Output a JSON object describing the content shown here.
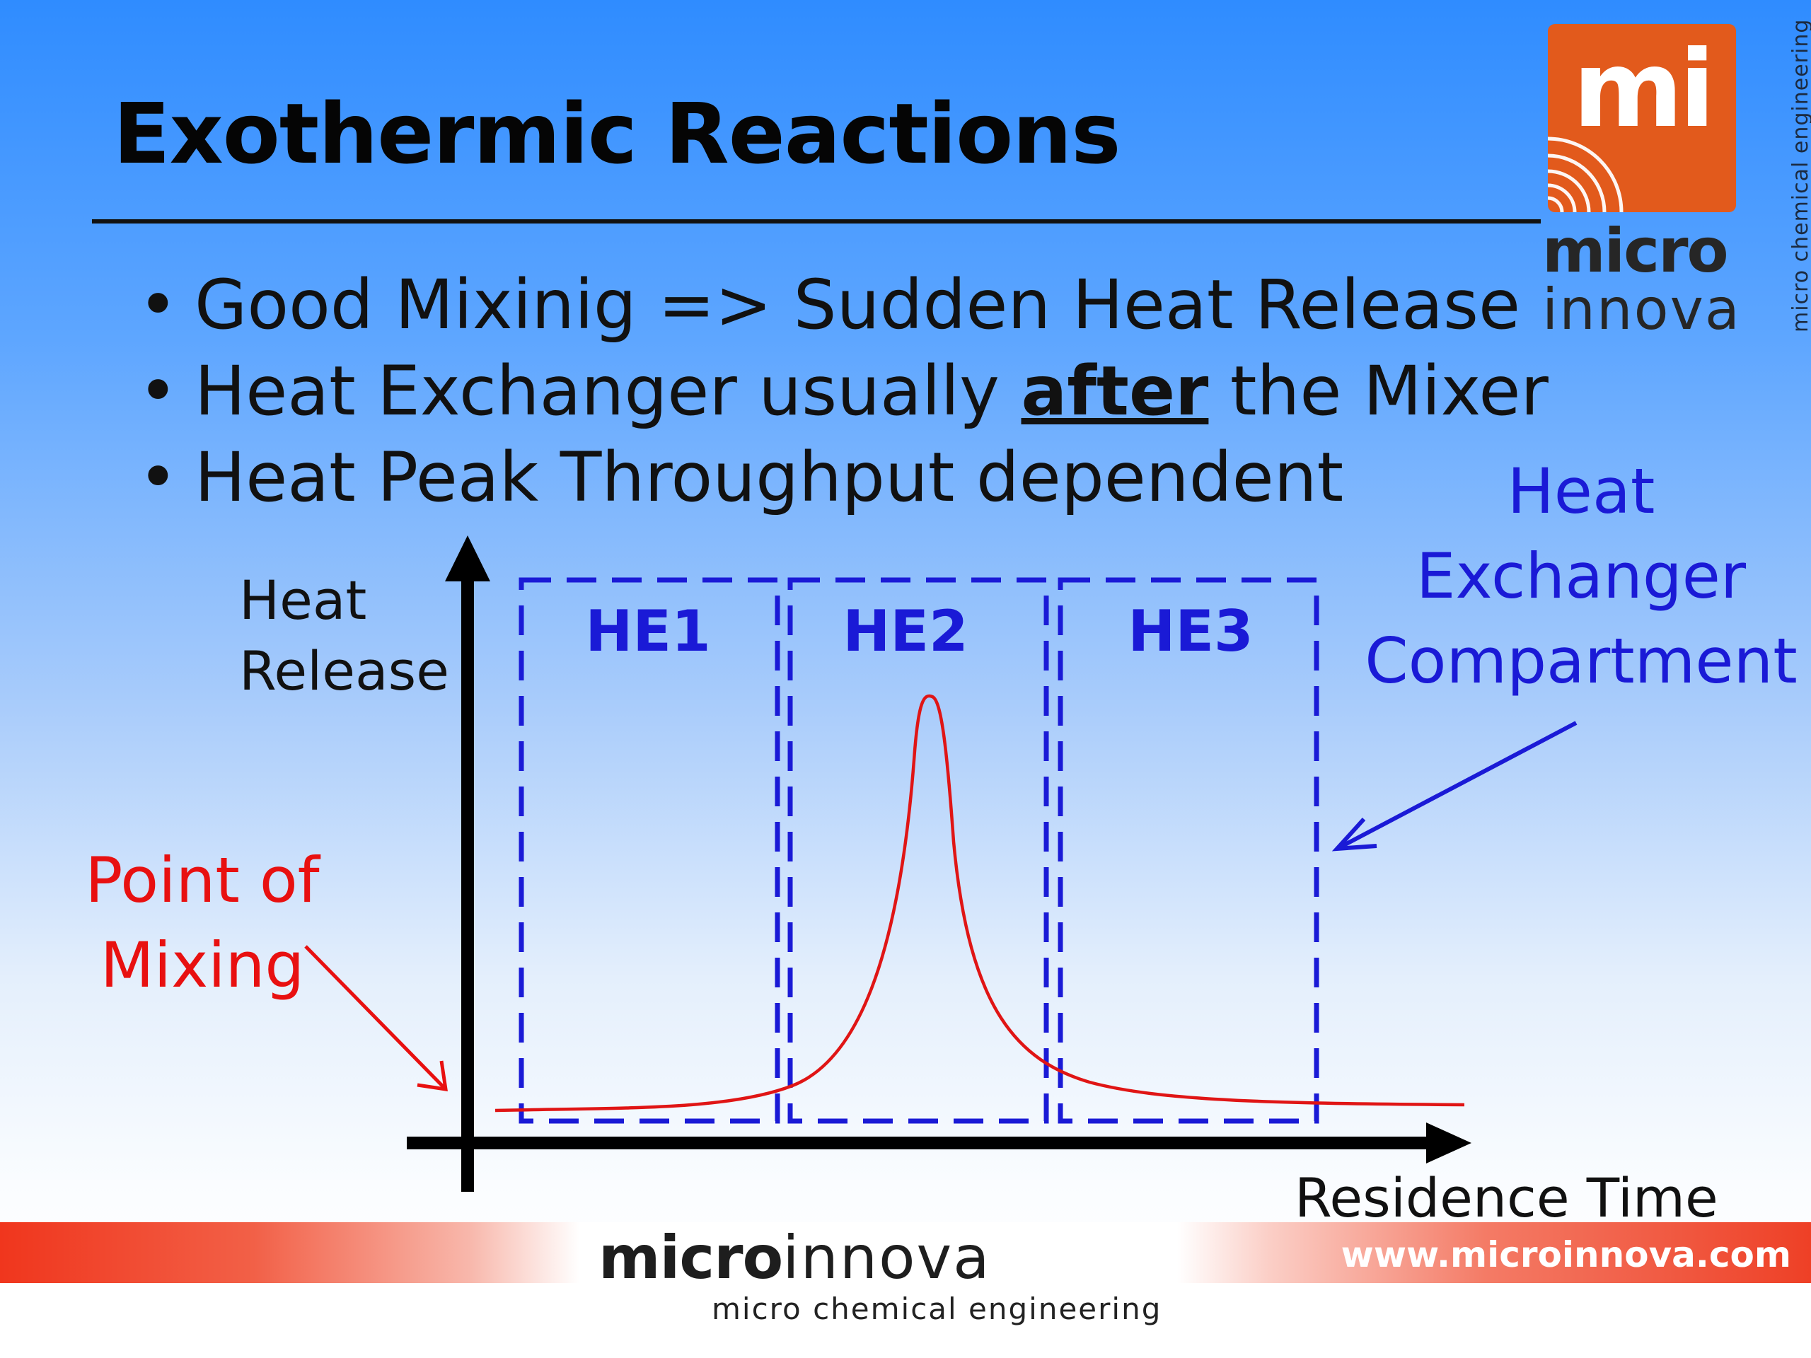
{
  "slide": {
    "title": "Exothermic Reactions",
    "bullets": [
      {
        "text": "Good Mixinig => Sudden Heat Release"
      },
      {
        "before": "Heat Exchanger usually ",
        "emph": "after",
        "after": " the Mixer"
      },
      {
        "text": "Heat Peak Throughput dependent"
      }
    ],
    "bullet_glyph": "•"
  },
  "logo": {
    "mark": "mi",
    "word_bold": "micro",
    "word_light": "innova",
    "tagline_vertical": "micro chemical engineering",
    "box_color": "#e25a1c"
  },
  "diagram": {
    "y_axis_label_line1": "Heat",
    "y_axis_label_line2": "Release",
    "x_axis_label": "Residence Time",
    "compartments": [
      {
        "label": "HE1"
      },
      {
        "label": "HE2"
      },
      {
        "label": "HE3"
      }
    ],
    "callout_heat_exchanger": [
      "Heat",
      "Exchanger",
      "Compartment"
    ],
    "callout_mixing": [
      "Point of",
      "Mixing"
    ],
    "colors": {
      "compartment": "#1a1ad6",
      "curve": "#e01515",
      "mixing_label": "#e81010",
      "axis": "#000000"
    }
  },
  "footer": {
    "brand_bold": "micro",
    "brand_light": "innova",
    "tagline": "micro chemical engineering",
    "url": "www.microinnova.com"
  }
}
